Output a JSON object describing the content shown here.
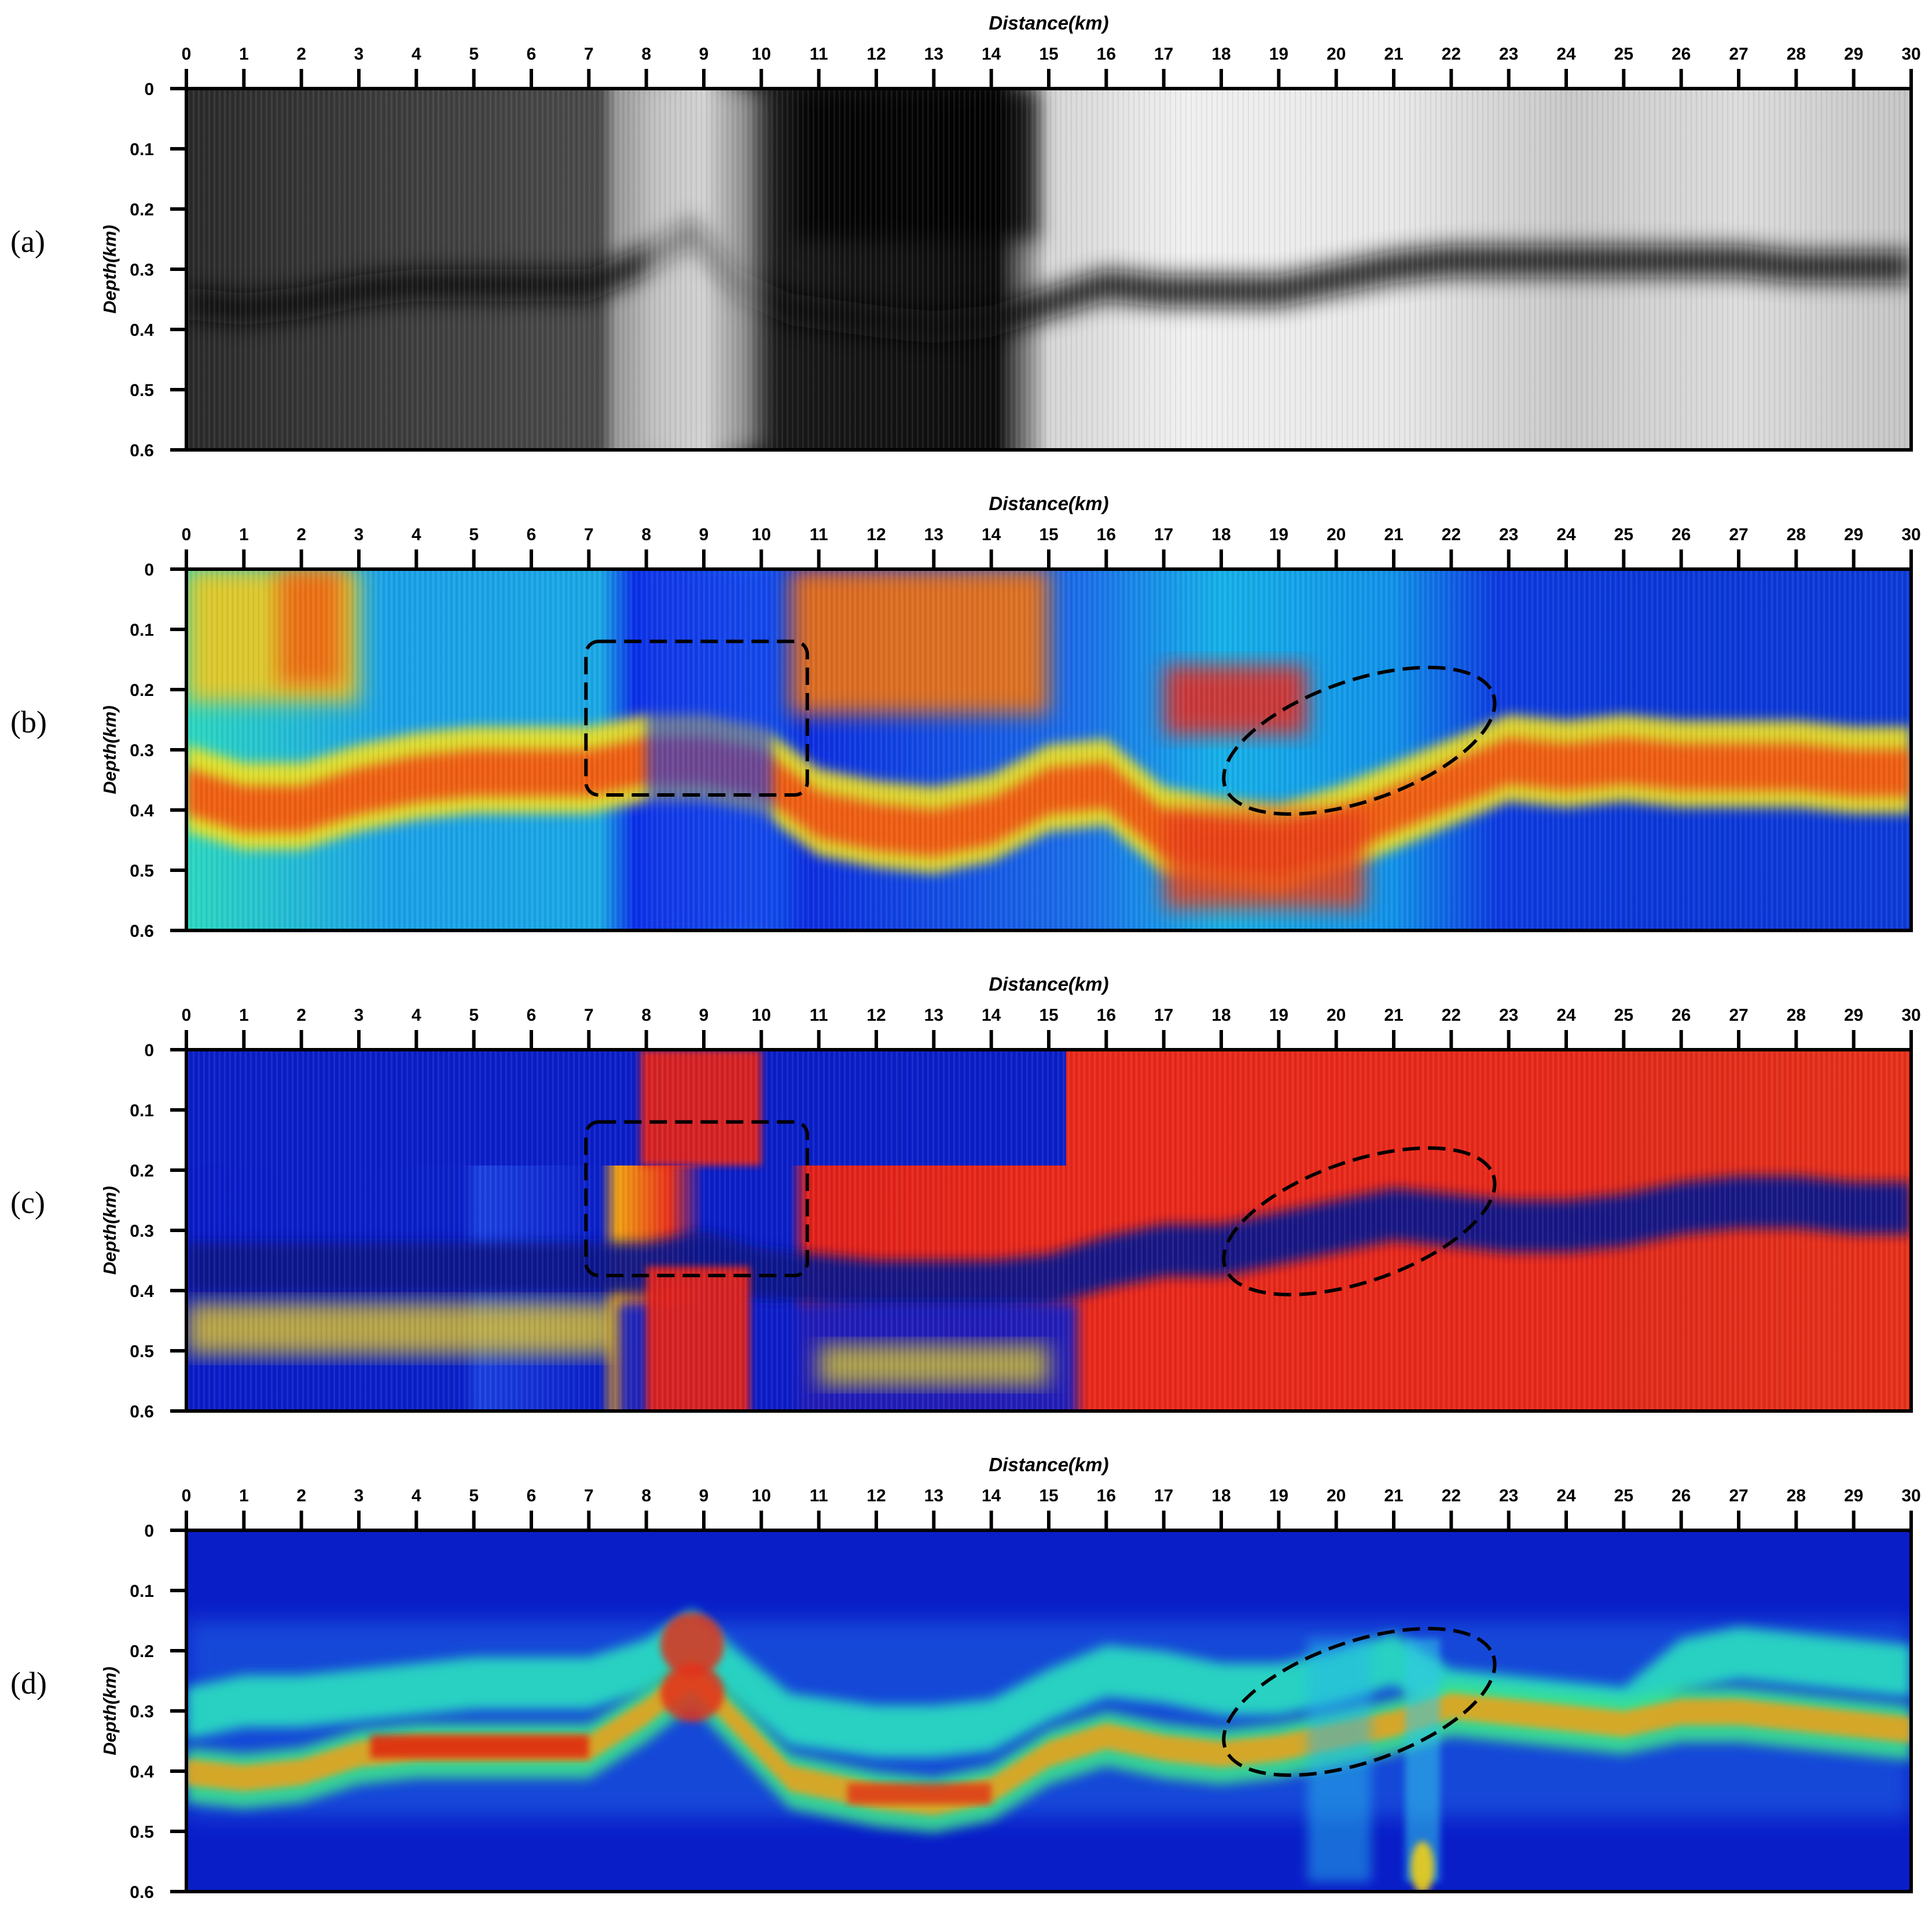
{
  "figure": {
    "description_labels": [
      "(a)",
      "(b)",
      "(c)",
      "(d)"
    ]
  },
  "chart_data": [
    {
      "type": "heatmap",
      "panel_label": "(a)",
      "colormap": "grayscale",
      "xlabel": "Distance(km)",
      "ylabel": "Depth(km)",
      "xlim": [
        0,
        30
      ],
      "ylim": [
        0,
        0.6
      ],
      "x_ticks": [
        "0",
        "1",
        "2",
        "3",
        "4",
        "5",
        "6",
        "7",
        "8",
        "9",
        "10",
        "11",
        "12",
        "13",
        "14",
        "15",
        "16",
        "17",
        "18",
        "19",
        "20",
        "21",
        "22",
        "23",
        "24",
        "25",
        "26",
        "27",
        "28",
        "29",
        "30"
      ],
      "y_ticks": [
        "0",
        "0.1",
        "0.2",
        "0.3",
        "0.4",
        "0.5",
        "0.6"
      ],
      "annotations": []
    },
    {
      "type": "heatmap",
      "panel_label": "(b)",
      "colormap": "jet",
      "xlabel": "Distance(km)",
      "ylabel": "Depth(km)",
      "xlim": [
        0,
        30
      ],
      "ylim": [
        0,
        0.6
      ],
      "x_ticks": [
        "0",
        "1",
        "2",
        "3",
        "4",
        "5",
        "6",
        "7",
        "8",
        "9",
        "10",
        "11",
        "12",
        "13",
        "14",
        "15",
        "16",
        "17",
        "18",
        "19",
        "20",
        "21",
        "22",
        "23",
        "24",
        "25",
        "26",
        "27",
        "28",
        "29",
        "30"
      ],
      "y_ticks": [
        "0",
        "0.1",
        "0.2",
        "0.3",
        "0.4",
        "0.5",
        "0.6"
      ],
      "annotations": [
        {
          "shape": "rounded-rect",
          "x": [
            7,
            10.8
          ],
          "y": [
            0.12,
            0.375
          ],
          "style": "dashed"
        },
        {
          "shape": "ellipse",
          "center": [
            20.4,
            0.28
          ],
          "style": "dashed"
        }
      ]
    },
    {
      "type": "heatmap",
      "panel_label": "(c)",
      "colormap": "jet",
      "xlabel": "Distance(km)",
      "ylabel": "Depth(km)",
      "xlim": [
        0,
        30
      ],
      "ylim": [
        0,
        0.6
      ],
      "x_ticks": [
        "0",
        "1",
        "2",
        "3",
        "4",
        "5",
        "6",
        "7",
        "8",
        "9",
        "10",
        "11",
        "12",
        "13",
        "14",
        "15",
        "16",
        "17",
        "18",
        "19",
        "20",
        "21",
        "22",
        "23",
        "24",
        "25",
        "26",
        "27",
        "28",
        "29",
        "30"
      ],
      "y_ticks": [
        "0",
        "0.1",
        "0.2",
        "0.3",
        "0.4",
        "0.5",
        "0.6"
      ],
      "annotations": [
        {
          "shape": "rounded-rect",
          "x": [
            7,
            10.8
          ],
          "y": [
            0.12,
            0.375
          ],
          "style": "dashed"
        },
        {
          "shape": "ellipse",
          "center": [
            20.4,
            0.28
          ],
          "style": "dashed"
        }
      ]
    },
    {
      "type": "heatmap",
      "panel_label": "(d)",
      "colormap": "jet",
      "xlabel": "Distance(km)",
      "ylabel": "Depth(km)",
      "xlim": [
        0,
        30
      ],
      "ylim": [
        0,
        0.6
      ],
      "x_ticks": [
        "0",
        "1",
        "2",
        "3",
        "4",
        "5",
        "6",
        "7",
        "8",
        "9",
        "10",
        "11",
        "12",
        "13",
        "14",
        "15",
        "16",
        "17",
        "18",
        "19",
        "20",
        "21",
        "22",
        "23",
        "24",
        "25",
        "26",
        "27",
        "28",
        "29",
        "30"
      ],
      "y_ticks": [
        "0",
        "0.1",
        "0.2",
        "0.3",
        "0.4",
        "0.5",
        "0.6"
      ],
      "annotations": [
        {
          "shape": "ellipse",
          "center": [
            20.4,
            0.28
          ],
          "style": "dashed"
        }
      ]
    }
  ]
}
